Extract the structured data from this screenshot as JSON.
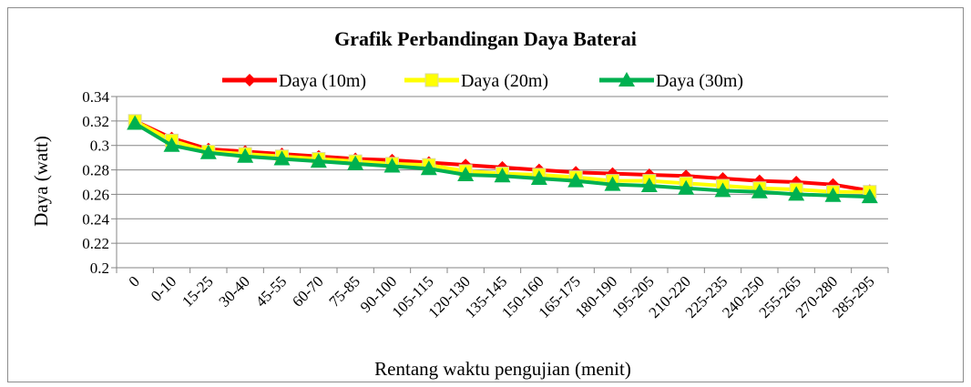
{
  "chart_data": {
    "type": "line",
    "title": "Grafik Perbandingan Daya Baterai",
    "xlabel": "Rentang waktu pengujian (menit)",
    "ylabel": "Daya (watt)",
    "ylim": [
      0.2,
      0.34
    ],
    "yticks": [
      0.2,
      0.22,
      0.24,
      0.26,
      0.28,
      0.3,
      0.32,
      0.34
    ],
    "ytick_labels": [
      "0.2",
      "0.22",
      "0.24",
      "0.26",
      "0.28",
      "0.3",
      "0.32",
      "0.34"
    ],
    "grid": true,
    "legend_position": "top",
    "categories": [
      "0",
      "0-10",
      "15-25",
      "30-40",
      "45-55",
      "60-70",
      "75-85",
      "90-100",
      "105-115",
      "120-130",
      "135-145",
      "150-160",
      "165-175",
      "180-190",
      "195-205",
      "210-220",
      "225-235",
      "240-250",
      "255-265",
      "270-280",
      "285-295"
    ],
    "series": [
      {
        "name": "Daya (10m)",
        "color": "#ff0000",
        "marker": "diamond",
        "values": [
          0.32,
          0.306,
          0.297,
          0.295,
          0.293,
          0.291,
          0.289,
          0.288,
          0.286,
          0.284,
          0.282,
          0.28,
          0.278,
          0.277,
          0.276,
          0.275,
          0.273,
          0.271,
          0.27,
          0.268,
          0.263
        ]
      },
      {
        "name": "Daya (20m)",
        "color": "#ffff00",
        "marker": "square",
        "values": [
          0.32,
          0.304,
          0.295,
          0.293,
          0.291,
          0.289,
          0.287,
          0.285,
          0.284,
          0.279,
          0.277,
          0.276,
          0.274,
          0.271,
          0.271,
          0.269,
          0.267,
          0.265,
          0.264,
          0.262,
          0.262
        ]
      },
      {
        "name": "Daya (30m)",
        "color": "#00b050",
        "marker": "triangle",
        "values": [
          0.318,
          0.3,
          0.294,
          0.291,
          0.289,
          0.287,
          0.285,
          0.283,
          0.281,
          0.276,
          0.275,
          0.273,
          0.271,
          0.268,
          0.267,
          0.265,
          0.263,
          0.262,
          0.26,
          0.259,
          0.258
        ]
      }
    ]
  }
}
